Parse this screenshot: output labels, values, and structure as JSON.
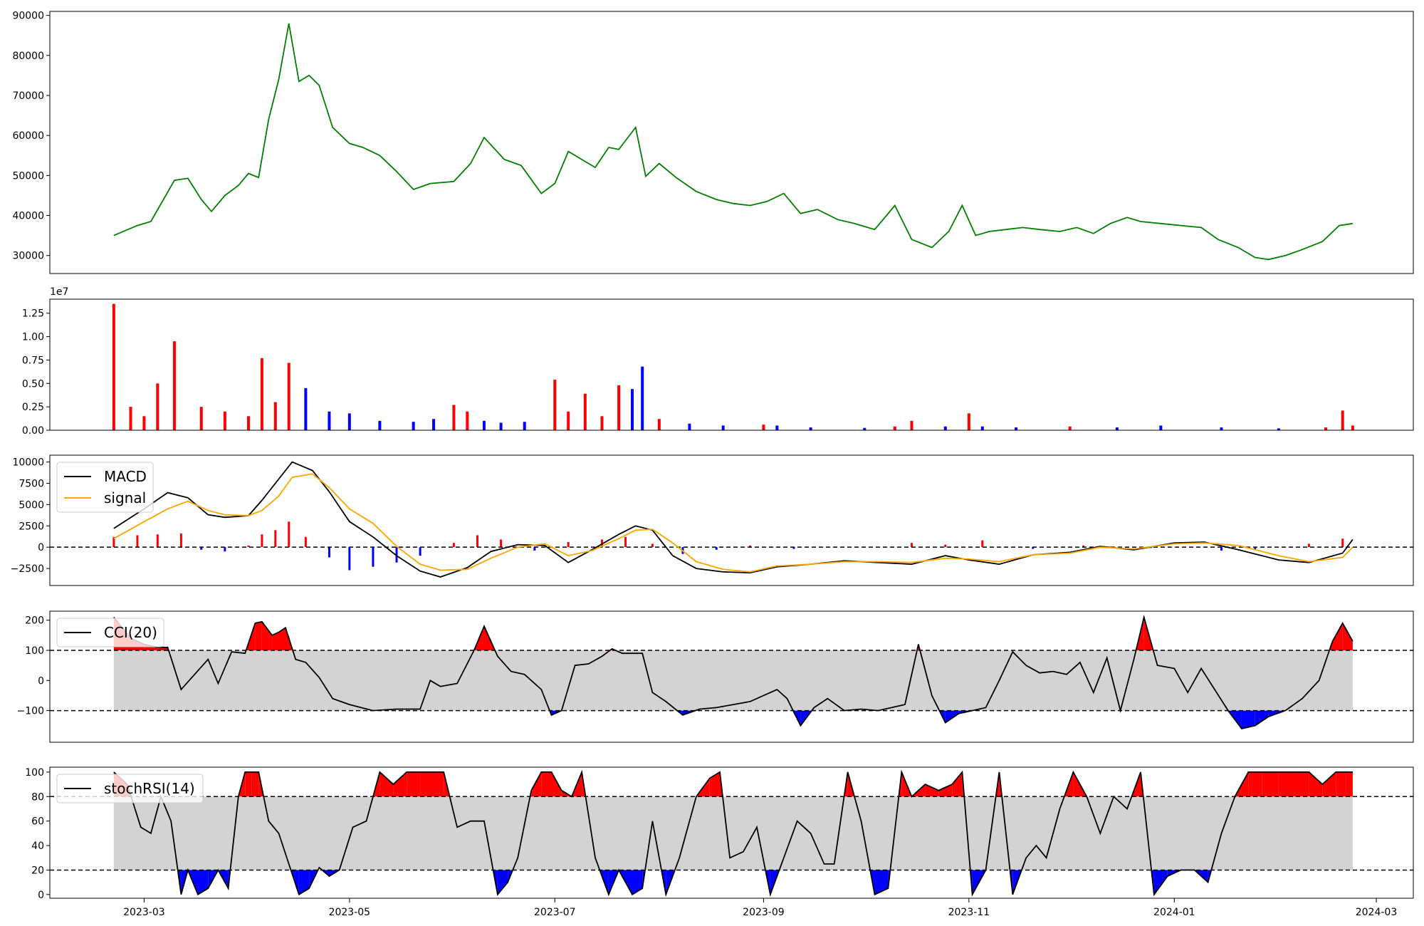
{
  "x_axis": {
    "ticks": [
      "2023-03",
      "2023-05",
      "2023-07",
      "2023-09",
      "2023-11",
      "2024-01",
      "2024-03"
    ],
    "tick_dates": [
      "2023-03-01",
      "2023-05-01",
      "2023-07-01",
      "2023-09-01",
      "2023-11-01",
      "2024-01-01",
      "2024-03-01"
    ],
    "range": [
      "2023-02-01",
      "2024-03-12"
    ]
  },
  "colors": {
    "price": "#008000",
    "up": "#ff0000",
    "down": "#0000ff",
    "macd": "#000000",
    "signal": "#ffa500",
    "band": "#d3d3d3"
  },
  "chart_data": [
    {
      "type": "line",
      "name": "price",
      "ylim": [
        25500,
        91000
      ],
      "yticks": [
        "30000",
        "40000",
        "50000",
        "60000",
        "70000",
        "80000",
        "90000"
      ],
      "x": [
        "2023-02-20",
        "2023-02-27",
        "2023-03-03",
        "2023-03-10",
        "2023-03-14",
        "2023-03-18",
        "2023-03-21",
        "2023-03-25",
        "2023-03-29",
        "2023-04-01",
        "2023-04-04",
        "2023-04-07",
        "2023-04-10",
        "2023-04-13",
        "2023-04-16",
        "2023-04-19",
        "2023-04-22",
        "2023-04-26",
        "2023-05-01",
        "2023-05-05",
        "2023-05-10",
        "2023-05-15",
        "2023-05-20",
        "2023-05-25",
        "2023-06-01",
        "2023-06-06",
        "2023-06-10",
        "2023-06-16",
        "2023-06-21",
        "2023-06-27",
        "2023-07-01",
        "2023-07-05",
        "2023-07-09",
        "2023-07-13",
        "2023-07-17",
        "2023-07-20",
        "2023-07-25",
        "2023-07-28",
        "2023-08-01",
        "2023-08-06",
        "2023-08-12",
        "2023-08-18",
        "2023-08-23",
        "2023-08-28",
        "2023-09-02",
        "2023-09-07",
        "2023-09-12",
        "2023-09-17",
        "2023-09-23",
        "2023-09-28",
        "2023-10-04",
        "2023-10-10",
        "2023-10-15",
        "2023-10-21",
        "2023-10-26",
        "2023-10-30",
        "2023-11-03",
        "2023-11-07",
        "2023-11-12",
        "2023-11-17",
        "2023-11-22",
        "2023-11-28",
        "2023-12-03",
        "2023-12-08",
        "2023-12-13",
        "2023-12-18",
        "2023-12-22",
        "2023-12-28",
        "2024-01-03",
        "2024-01-09",
        "2024-01-14",
        "2024-01-20",
        "2024-01-25",
        "2024-01-29",
        "2024-02-03",
        "2024-02-08",
        "2024-02-14",
        "2024-02-19",
        "2024-02-23"
      ],
      "y": [
        35000,
        37500,
        38500,
        48800,
        49300,
        44000,
        41000,
        45000,
        47500,
        50500,
        49500,
        64000,
        74000,
        88000,
        73500,
        75000,
        72500,
        62000,
        58000,
        57000,
        55000,
        51000,
        46500,
        48000,
        48500,
        53000,
        59500,
        54000,
        52500,
        45500,
        48000,
        56000,
        54000,
        52000,
        57000,
        56500,
        62000,
        49800,
        53000,
        49500,
        46000,
        44000,
        43000,
        42500,
        43500,
        45500,
        40500,
        41500,
        39000,
        38000,
        36500,
        42500,
        34000,
        32000,
        36000,
        42500,
        35000,
        36000,
        36500,
        37000,
        36500,
        36000,
        37000,
        35500,
        38000,
        39500,
        38500,
        38000,
        37500,
        37000,
        34000,
        32000,
        29500,
        29000,
        30000,
        31500,
        33500,
        37500,
        38000
      ]
    },
    {
      "type": "bar",
      "name": "volume",
      "ylim": [
        0,
        14000000
      ],
      "yticks": [
        "0.00",
        "0.25",
        "0.50",
        "0.75",
        "1.00",
        "1.25"
      ],
      "scale_label": "1e7",
      "x": [
        "2023-02-20",
        "2023-02-25",
        "2023-03-01",
        "2023-03-05",
        "2023-03-10",
        "2023-03-18",
        "2023-03-25",
        "2023-04-01",
        "2023-04-05",
        "2023-04-09",
        "2023-04-13",
        "2023-04-18",
        "2023-04-25",
        "2023-05-01",
        "2023-05-10",
        "2023-05-20",
        "2023-05-26",
        "2023-06-01",
        "2023-06-05",
        "2023-06-10",
        "2023-06-15",
        "2023-06-22",
        "2023-07-01",
        "2023-07-05",
        "2023-07-10",
        "2023-07-15",
        "2023-07-20",
        "2023-07-24",
        "2023-07-27",
        "2023-08-01",
        "2023-08-10",
        "2023-08-20",
        "2023-09-01",
        "2023-09-05",
        "2023-09-15",
        "2023-10-01",
        "2023-10-10",
        "2023-10-15",
        "2023-10-25",
        "2023-11-01",
        "2023-11-05",
        "2023-11-15",
        "2023-12-01",
        "2023-12-15",
        "2023-12-28",
        "2024-01-15",
        "2024-02-01",
        "2024-02-15",
        "2024-02-20",
        "2024-02-23"
      ],
      "values": [
        13500000,
        2500000,
        1500000,
        5000000,
        9500000,
        2500000,
        2000000,
        1500000,
        7700000,
        3000000,
        7200000,
        4500000,
        2000000,
        1800000,
        1000000,
        900000,
        1200000,
        2700000,
        2000000,
        1000000,
        800000,
        900000,
        5400000,
        2000000,
        3900000,
        1500000,
        4800000,
        4400000,
        6800000,
        1200000,
        700000,
        500000,
        600000,
        500000,
        300000,
        250000,
        400000,
        1000000,
        400000,
        1800000,
        400000,
        300000,
        400000,
        300000,
        500000,
        300000,
        200000,
        300000,
        2100000,
        500000
      ],
      "up": [
        true,
        true,
        true,
        true,
        true,
        true,
        true,
        true,
        true,
        true,
        true,
        false,
        false,
        false,
        false,
        false,
        false,
        true,
        true,
        false,
        false,
        false,
        true,
        true,
        true,
        true,
        true,
        false,
        false,
        true,
        false,
        false,
        true,
        false,
        false,
        false,
        true,
        true,
        false,
        true,
        false,
        false,
        true,
        false,
        false,
        false,
        false,
        true,
        true,
        true
      ]
    },
    {
      "type": "line",
      "name": "macd",
      "ylim": [
        -4500,
        10800
      ],
      "yticks": [
        "−2500",
        "0",
        "2500",
        "5000",
        "7500",
        "10000"
      ],
      "legend": [
        "MACD",
        "signal"
      ],
      "x": [
        "2023-02-20",
        "2023-03-01",
        "2023-03-08",
        "2023-03-14",
        "2023-03-20",
        "2023-03-25",
        "2023-04-01",
        "2023-04-05",
        "2023-04-10",
        "2023-04-14",
        "2023-04-20",
        "2023-04-25",
        "2023-05-01",
        "2023-05-08",
        "2023-05-15",
        "2023-05-22",
        "2023-05-28",
        "2023-06-05",
        "2023-06-12",
        "2023-06-20",
        "2023-06-28",
        "2023-07-05",
        "2023-07-12",
        "2023-07-20",
        "2023-07-25",
        "2023-07-30",
        "2023-08-05",
        "2023-08-12",
        "2023-08-20",
        "2023-08-28",
        "2023-09-05",
        "2023-09-15",
        "2023-09-25",
        "2023-10-05",
        "2023-10-15",
        "2023-10-25",
        "2023-11-01",
        "2023-11-10",
        "2023-11-20",
        "2023-12-01",
        "2023-12-10",
        "2023-12-20",
        "2024-01-01",
        "2024-01-10",
        "2024-01-20",
        "2024-02-01",
        "2024-02-10",
        "2024-02-20",
        "2024-02-23"
      ],
      "macd": [
        2200,
        4500,
        6400,
        5800,
        3800,
        3500,
        3700,
        5500,
        8000,
        10000,
        9000,
        6500,
        3000,
        1200,
        -1000,
        -2800,
        -3500,
        -2400,
        -500,
        300,
        200,
        -1800,
        -300,
        1500,
        2500,
        2000,
        -1000,
        -2500,
        -2900,
        -3000,
        -2300,
        -2000,
        -1600,
        -1800,
        -2000,
        -1000,
        -1500,
        -2000,
        -900,
        -600,
        100,
        -300,
        500,
        600,
        -300,
        -1500,
        -1800,
        -700,
        900
      ],
      "signal": [
        1000,
        3000,
        4500,
        5400,
        4300,
        3800,
        3700,
        4300,
        6000,
        8200,
        8600,
        7000,
        4500,
        2800,
        100,
        -2000,
        -2700,
        -2600,
        -1300,
        0,
        400,
        -1000,
        -400,
        1000,
        2000,
        2100,
        500,
        -1700,
        -2600,
        -2900,
        -2200,
        -2000,
        -1700,
        -1700,
        -1800,
        -1300,
        -1400,
        -1700,
        -900,
        -700,
        0,
        -200,
        400,
        500,
        200,
        -1000,
        -1700,
        -1200,
        0
      ],
      "hist_x": [
        "2023-02-20",
        "2023-02-27",
        "2023-03-05",
        "2023-03-12",
        "2023-03-18",
        "2023-03-25",
        "2023-04-01",
        "2023-04-05",
        "2023-04-09",
        "2023-04-13",
        "2023-04-18",
        "2023-04-25",
        "2023-05-01",
        "2023-05-08",
        "2023-05-15",
        "2023-05-22",
        "2023-06-01",
        "2023-06-08",
        "2023-06-15",
        "2023-06-25",
        "2023-07-05",
        "2023-07-15",
        "2023-07-22",
        "2023-07-30",
        "2023-08-08",
        "2023-08-18",
        "2023-08-28",
        "2023-09-10",
        "2023-10-15",
        "2023-10-25",
        "2023-11-05",
        "2023-11-20",
        "2023-12-05",
        "2023-12-25",
        "2024-01-15",
        "2024-01-25",
        "2024-02-10",
        "2024-02-20"
      ],
      "hist": [
        1200,
        1400,
        1500,
        1600,
        -300,
        -500,
        200,
        1500,
        2000,
        3000,
        1200,
        -1200,
        -2700,
        -2300,
        -1800,
        -1000,
        500,
        1400,
        900,
        -400,
        600,
        900,
        1200,
        400,
        -800,
        -300,
        200,
        -200,
        500,
        300,
        800,
        -200,
        200,
        -100,
        -400,
        -300,
        400,
        1000
      ]
    },
    {
      "type": "line",
      "name": "cci",
      "ylim": [
        -205,
        230
      ],
      "yticks": [
        "−100",
        "0",
        "100",
        "200"
      ],
      "levels": [
        -100,
        100
      ],
      "legend": [
        "CCI(20)"
      ],
      "x": [
        "2023-02-20",
        "2023-02-25",
        "2023-03-01",
        "2023-03-05",
        "2023-03-08",
        "2023-03-12",
        "2023-03-16",
        "2023-03-20",
        "2023-03-23",
        "2023-03-27",
        "2023-03-31",
        "2023-04-03",
        "2023-04-05",
        "2023-04-08",
        "2023-04-10",
        "2023-04-12",
        "2023-04-15",
        "2023-04-18",
        "2023-04-22",
        "2023-04-26",
        "2023-05-01",
        "2023-05-08",
        "2023-05-15",
        "2023-05-22",
        "2023-05-25",
        "2023-05-28",
        "2023-06-02",
        "2023-06-07",
        "2023-06-10",
        "2023-06-14",
        "2023-06-18",
        "2023-06-22",
        "2023-06-27",
        "2023-06-30",
        "2023-07-03",
        "2023-07-07",
        "2023-07-11",
        "2023-07-15",
        "2023-07-18",
        "2023-07-21",
        "2023-07-24",
        "2023-07-27",
        "2023-07-30",
        "2023-08-03",
        "2023-08-08",
        "2023-08-13",
        "2023-08-18",
        "2023-08-23",
        "2023-08-28",
        "2023-09-01",
        "2023-09-05",
        "2023-09-08",
        "2023-09-12",
        "2023-09-16",
        "2023-09-20",
        "2023-09-25",
        "2023-09-30",
        "2023-10-05",
        "2023-10-09",
        "2023-10-13",
        "2023-10-17",
        "2023-10-21",
        "2023-10-25",
        "2023-10-29",
        "2023-11-02",
        "2023-11-06",
        "2023-11-10",
        "2023-11-14",
        "2023-11-18",
        "2023-11-22",
        "2023-11-26",
        "2023-11-30",
        "2023-12-04",
        "2023-12-08",
        "2023-12-12",
        "2023-12-16",
        "2023-12-20",
        "2023-12-23",
        "2023-12-27",
        "2024-01-01",
        "2024-01-05",
        "2024-01-09",
        "2024-01-13",
        "2024-01-17",
        "2024-01-21",
        "2024-01-25",
        "2024-01-29",
        "2024-02-03",
        "2024-02-08",
        "2024-02-13",
        "2024-02-17",
        "2024-02-20",
        "2024-02-23"
      ],
      "y": [
        210,
        140,
        120,
        110,
        110,
        -30,
        20,
        70,
        -10,
        95,
        90,
        190,
        195,
        150,
        160,
        175,
        70,
        60,
        10,
        -60,
        -80,
        -100,
        -95,
        -95,
        0,
        -20,
        -10,
        100,
        180,
        80,
        30,
        20,
        -30,
        -115,
        -100,
        50,
        55,
        80,
        105,
        90,
        90,
        90,
        -40,
        -70,
        -115,
        -95,
        -90,
        -80,
        -70,
        -50,
        -30,
        -60,
        -150,
        -90,
        -60,
        -100,
        -95,
        -100,
        -90,
        -80,
        120,
        -50,
        -140,
        -110,
        -100,
        -90,
        0,
        95,
        50,
        25,
        30,
        20,
        60,
        -40,
        75,
        -100,
        70,
        210,
        50,
        40,
        -40,
        40,
        -30,
        -100,
        -160,
        -150,
        -120,
        -100,
        -60,
        0,
        130,
        190,
        130
      ],
      "fill_above": [
        "#ff0000"
      ],
      "fill_below": [
        "#0000ff"
      ]
    },
    {
      "type": "line",
      "name": "stochrsi",
      "ylim": [
        -3,
        104
      ],
      "yticks": [
        "0",
        "20",
        "40",
        "60",
        "80",
        "100"
      ],
      "levels": [
        20,
        80
      ],
      "legend": [
        "stochRSI(14)"
      ],
      "x": [
        "2023-02-20",
        "2023-02-24",
        "2023-02-28",
        "2023-03-03",
        "2023-03-06",
        "2023-03-09",
        "2023-03-12",
        "2023-03-14",
        "2023-03-17",
        "2023-03-20",
        "2023-03-23",
        "2023-03-26",
        "2023-03-29",
        "2023-03-31",
        "2023-04-02",
        "2023-04-04",
        "2023-04-07",
        "2023-04-10",
        "2023-04-13",
        "2023-04-16",
        "2023-04-19",
        "2023-04-22",
        "2023-04-25",
        "2023-04-28",
        "2023-05-02",
        "2023-05-06",
        "2023-05-10",
        "2023-05-14",
        "2023-05-18",
        "2023-05-22",
        "2023-05-26",
        "2023-05-29",
        "2023-06-02",
        "2023-06-06",
        "2023-06-10",
        "2023-06-14",
        "2023-06-17",
        "2023-06-20",
        "2023-06-24",
        "2023-06-27",
        "2023-06-30",
        "2023-07-03",
        "2023-07-06",
        "2023-07-09",
        "2023-07-13",
        "2023-07-17",
        "2023-07-20",
        "2023-07-24",
        "2023-07-27",
        "2023-07-30",
        "2023-08-03",
        "2023-08-07",
        "2023-08-12",
        "2023-08-16",
        "2023-08-19",
        "2023-08-22",
        "2023-08-26",
        "2023-08-30",
        "2023-09-03",
        "2023-09-07",
        "2023-09-11",
        "2023-09-15",
        "2023-09-19",
        "2023-09-22",
        "2023-09-26",
        "2023-09-30",
        "2023-10-04",
        "2023-10-08",
        "2023-10-12",
        "2023-10-15",
        "2023-10-19",
        "2023-10-23",
        "2023-10-27",
        "2023-10-30",
        "2023-11-02",
        "2023-11-06",
        "2023-11-10",
        "2023-11-14",
        "2023-11-18",
        "2023-11-21",
        "2023-11-24",
        "2023-11-28",
        "2023-12-02",
        "2023-12-06",
        "2023-12-10",
        "2023-12-14",
        "2023-12-18",
        "2023-12-22",
        "2023-12-26",
        "2023-12-30",
        "2024-01-03",
        "2024-01-07",
        "2024-01-11",
        "2024-01-15",
        "2024-01-19",
        "2024-01-23",
        "2024-01-27",
        "2024-02-01",
        "2024-02-06",
        "2024-02-10",
        "2024-02-14",
        "2024-02-18",
        "2024-02-21",
        "2024-02-23"
      ],
      "y": [
        100,
        90,
        55,
        50,
        80,
        60,
        0,
        20,
        0,
        5,
        20,
        5,
        80,
        100,
        100,
        100,
        60,
        50,
        25,
        0,
        5,
        22,
        15,
        20,
        55,
        60,
        100,
        90,
        100,
        100,
        100,
        100,
        55,
        60,
        60,
        0,
        10,
        30,
        85,
        100,
        100,
        85,
        80,
        100,
        30,
        0,
        20,
        0,
        5,
        60,
        0,
        30,
        80,
        95,
        100,
        30,
        35,
        55,
        0,
        30,
        60,
        50,
        25,
        25,
        100,
        60,
        0,
        5,
        100,
        80,
        90,
        85,
        90,
        100,
        0,
        20,
        100,
        0,
        30,
        40,
        30,
        70,
        100,
        80,
        50,
        80,
        70,
        100,
        0,
        15,
        20,
        20,
        10,
        50,
        80,
        100,
        100,
        100,
        100,
        100,
        90,
        100,
        100,
        100
      ],
      "fill_above": [
        "#ff0000"
      ],
      "fill_below": [
        "#0000ff"
      ]
    }
  ]
}
